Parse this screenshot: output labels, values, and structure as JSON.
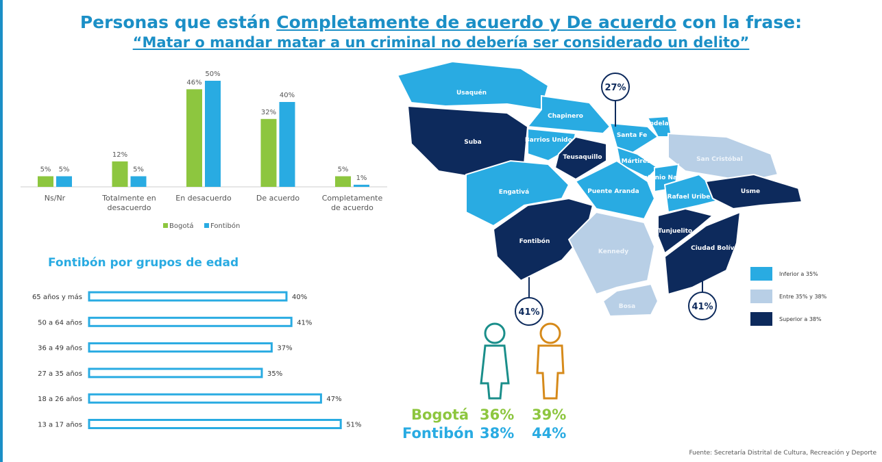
{
  "title": {
    "before": "Personas que están ",
    "underlined": "Completamente de acuerdo y De acuerdo",
    "after": " con la frase:"
  },
  "subtitle": "“Matar o mandar matar a un criminal no debería ser considerado un delito”",
  "chart_data": [
    {
      "type": "bar",
      "categories": [
        "Ns/Nr",
        "Totalmente en desacuerdo",
        "En desacuerdo",
        "De acuerdo",
        "Completamente de acuerdo"
      ],
      "series": [
        {
          "name": "Bogotá",
          "color": "#8dc63f",
          "values": [
            5,
            12,
            46,
            32,
            5
          ],
          "value_labels": [
            "5%",
            "12%",
            "46%",
            "32%",
            "5%"
          ]
        },
        {
          "name": "Fontibón",
          "color": "#29abe2",
          "values": [
            5,
            5,
            50,
            40,
            1
          ],
          "value_labels": [
            "5%",
            "5%",
            "50%",
            "40%",
            "1%"
          ]
        }
      ]
    },
    {
      "type": "hbar",
      "title": "Fontibón por grupos de edad",
      "categories": [
        "65 años y más",
        "50 a 64 años",
        "36 a 49 años",
        "27 a 35 años",
        "18 a 26 años",
        "13 a 17 años"
      ],
      "values": [
        40,
        41,
        37,
        35,
        47,
        51
      ],
      "value_labels": [
        "40%",
        "41%",
        "37%",
        "35%",
        "47%",
        "51%"
      ],
      "color": "#29abe2"
    }
  ],
  "map": {
    "districts": [
      "Usaquén",
      "Chapinero",
      "Suba",
      "Barrios Unidos",
      "Teusaquillo",
      "Santa Fe",
      "Candelaria",
      "San Cristóbal",
      "Mártires",
      "Antonio Nariño",
      "Engativá",
      "Puente Aranda",
      "Rafael Uribe",
      "Usme",
      "Fontibón",
      "Kennedy",
      "Tunjuelito",
      "Ciudad Bolívar",
      "Bosa"
    ],
    "callouts": [
      "27%",
      "41%",
      "41%"
    ],
    "legend": [
      "Inferior a 35%",
      "Entre 35% y 38%",
      "Superior a 38%"
    ]
  },
  "gender": [
    {
      "label": "Bogotá",
      "female": "36%",
      "male": "39%"
    },
    {
      "label": "Fontibón",
      "female": "38%",
      "male": "44%"
    }
  ],
  "source": "Fuente: Secretaría Distrital de Cultura, Recreación y Deporte"
}
